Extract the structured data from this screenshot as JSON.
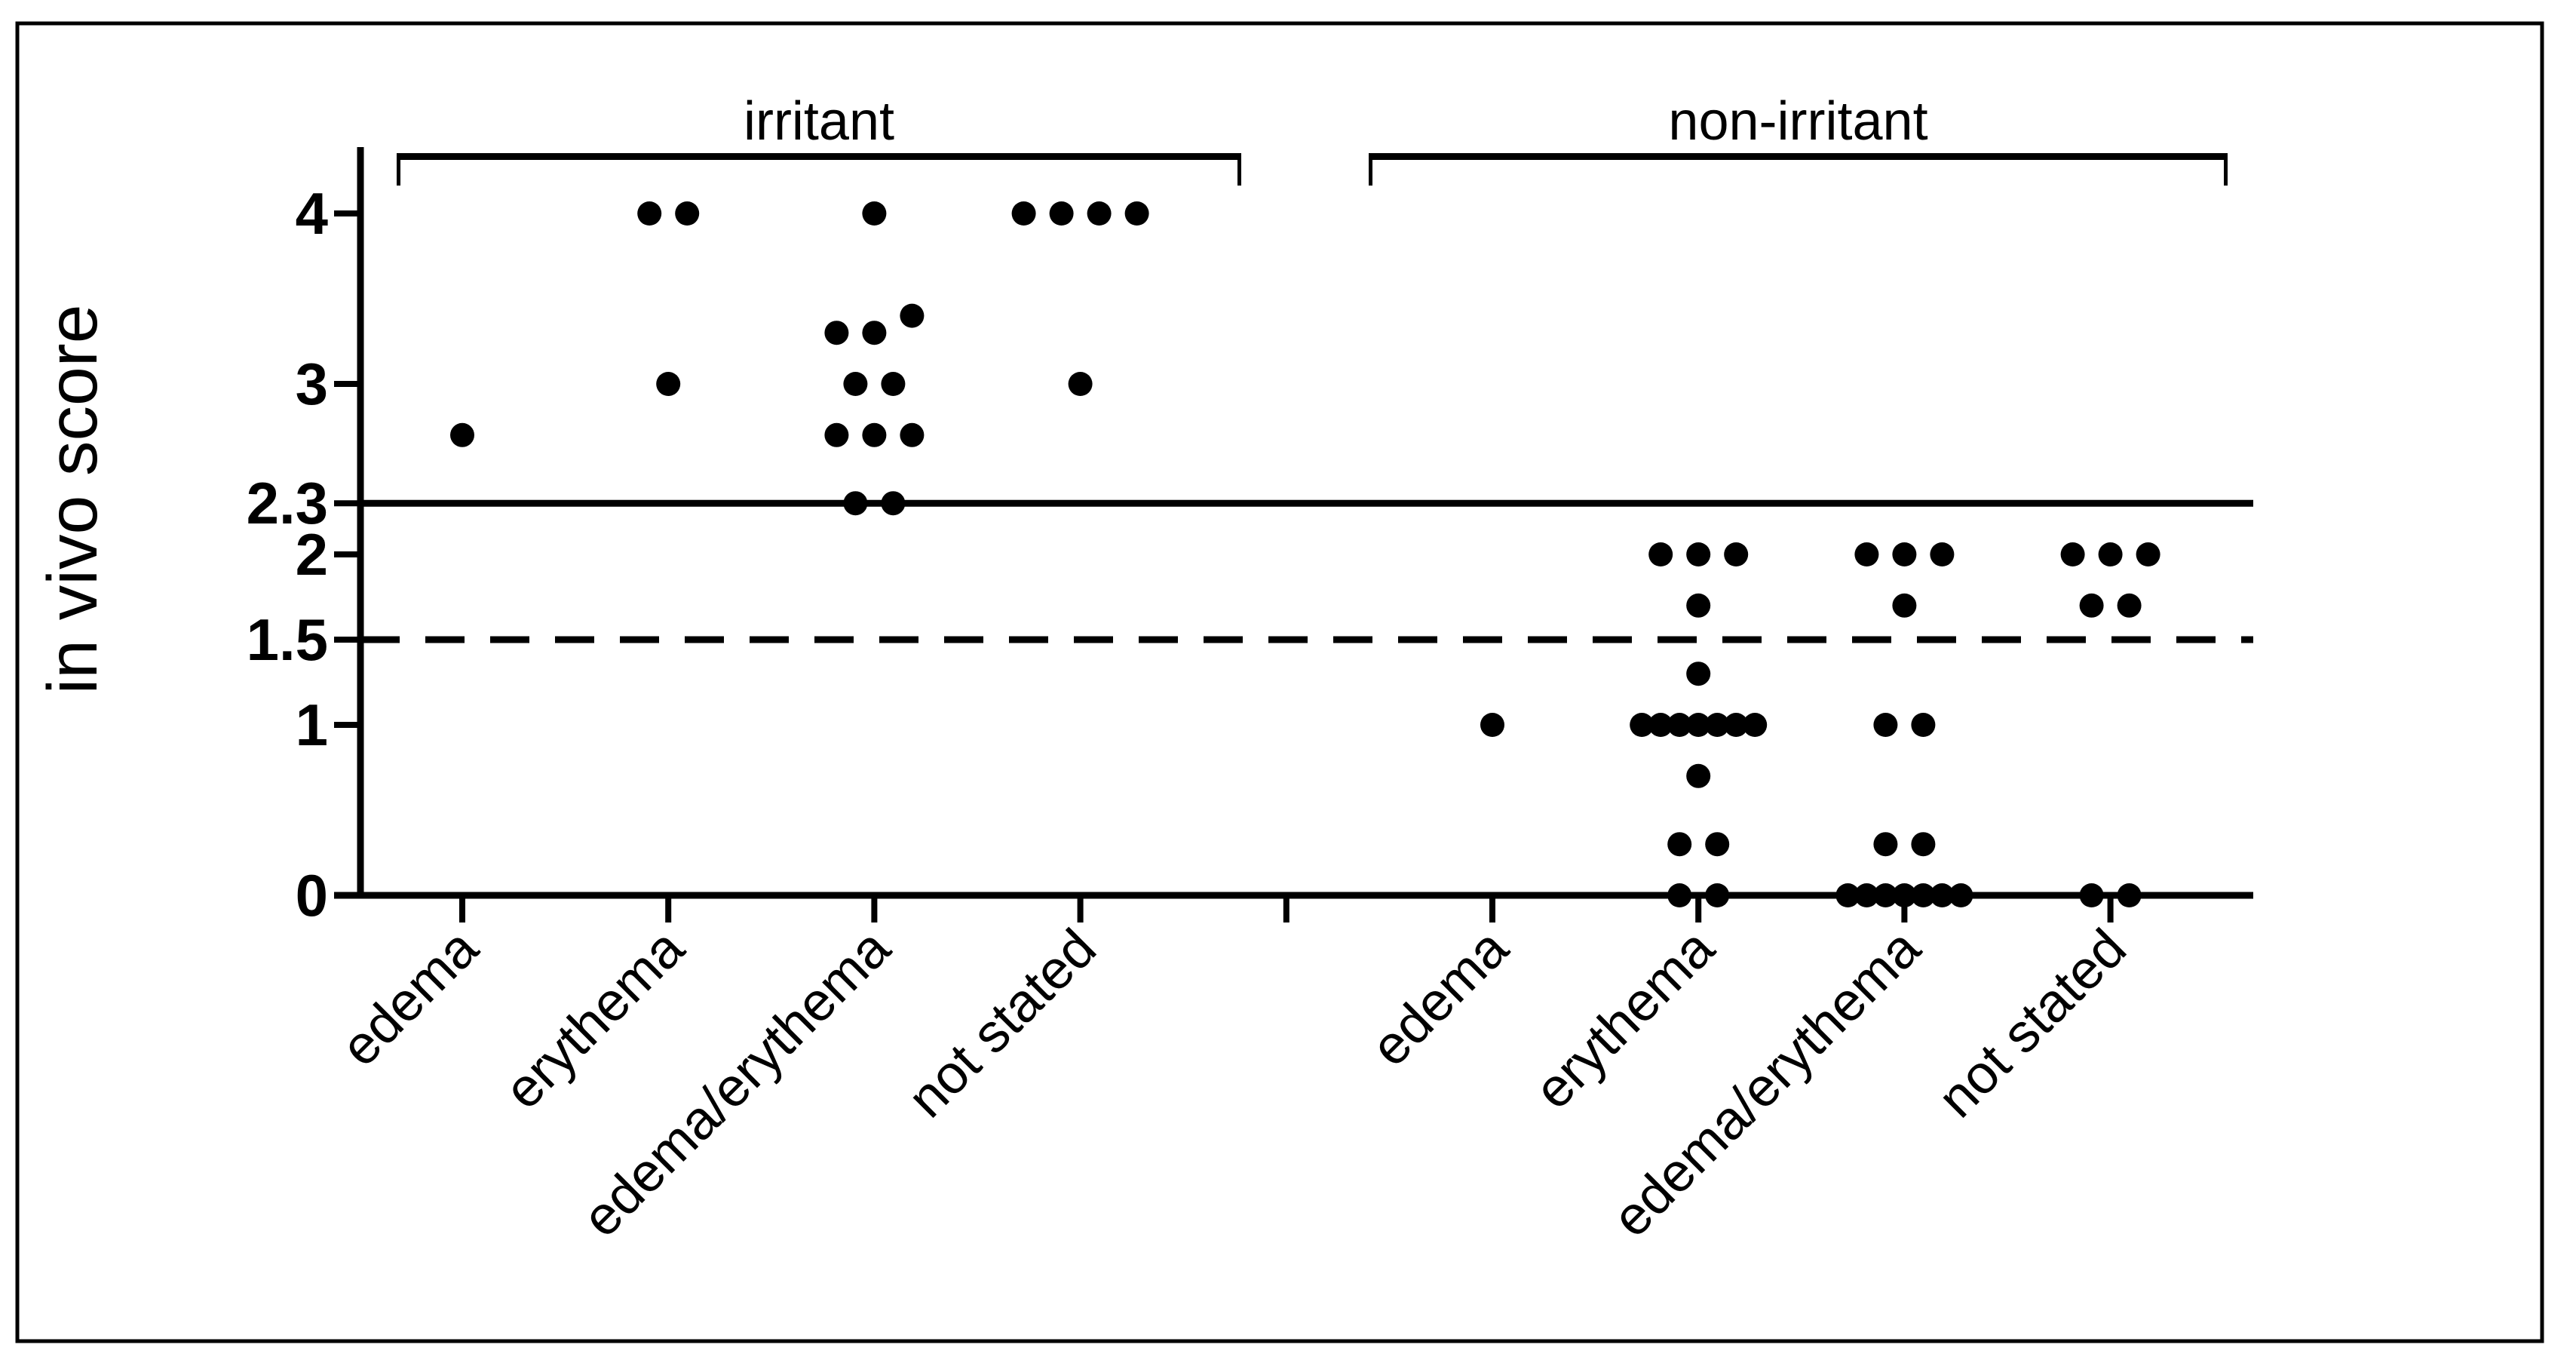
{
  "figure": {
    "ylabel": "in vivo score",
    "colors": {
      "ink": "#000000",
      "background": "#ffffff"
    }
  },
  "chart_data": {
    "type": "scatter",
    "subtype": "categorical-dot-plot",
    "title": "",
    "xlabel": "",
    "ylabel": "in vivo score",
    "ylim": [
      0,
      4.4
    ],
    "grid": false,
    "legend": "none",
    "yticks": [
      {
        "value": 4,
        "label": "4"
      },
      {
        "value": 3,
        "label": "3"
      },
      {
        "value": 2.3,
        "label": "2.3"
      },
      {
        "value": 2,
        "label": "2"
      },
      {
        "value": 1.5,
        "label": "1.5"
      },
      {
        "value": 1,
        "label": "1"
      },
      {
        "value": 0,
        "label": "0"
      }
    ],
    "reference_lines": [
      {
        "value": 2.3,
        "style": "solid"
      },
      {
        "value": 1.5,
        "style": "dashed"
      }
    ],
    "groups": [
      {
        "label": "irritant",
        "categories": [
          {
            "label": "edema",
            "values": [
              2.7
            ],
            "points": [
              {
                "v": 2.7,
                "dx": 0
              }
            ]
          },
          {
            "label": "erythema",
            "values": [
              4,
              4,
              3
            ],
            "points": [
              {
                "v": 4,
                "dx": -25
              },
              {
                "v": 4,
                "dx": 25
              },
              {
                "v": 3,
                "dx": 0
              }
            ]
          },
          {
            "label": "edema/erythema",
            "values": [
              4,
              3.4,
              3.3,
              3.3,
              3,
              3,
              2.7,
              2.7,
              2.7,
              2.3,
              2.3
            ],
            "points": [
              {
                "v": 4,
                "dx": 0
              },
              {
                "v": 3.4,
                "dx": 50
              },
              {
                "v": 3.3,
                "dx": -50
              },
              {
                "v": 3.3,
                "dx": 0
              },
              {
                "v": 3,
                "dx": -25
              },
              {
                "v": 3,
                "dx": 25
              },
              {
                "v": 2.7,
                "dx": -50
              },
              {
                "v": 2.7,
                "dx": 0
              },
              {
                "v": 2.7,
                "dx": 50
              },
              {
                "v": 2.3,
                "dx": -25
              },
              {
                "v": 2.3,
                "dx": 25
              }
            ]
          },
          {
            "label": "not stated",
            "values": [
              4,
              4,
              4,
              4,
              3
            ],
            "points": [
              {
                "v": 4,
                "dx": -75
              },
              {
                "v": 4,
                "dx": -25
              },
              {
                "v": 4,
                "dx": 25
              },
              {
                "v": 4,
                "dx": 75
              },
              {
                "v": 3,
                "dx": 0
              }
            ]
          }
        ]
      },
      {
        "label": "non-irritant",
        "categories": [
          {
            "label": "edema",
            "values": [
              1
            ],
            "points": [
              {
                "v": 1,
                "dx": 0
              }
            ]
          },
          {
            "label": "erythema",
            "values": [
              2,
              2,
              2,
              1.7,
              1.3,
              1,
              1,
              1,
              1,
              1,
              1,
              1,
              0.7,
              0.3,
              0.3,
              0,
              0
            ],
            "points": [
              {
                "v": 2,
                "dx": -50
              },
              {
                "v": 2,
                "dx": 0
              },
              {
                "v": 2,
                "dx": 50
              },
              {
                "v": 1.7,
                "dx": 0
              },
              {
                "v": 1.3,
                "dx": 0
              },
              {
                "v": 1,
                "dx": -75
              },
              {
                "v": 1,
                "dx": -50
              },
              {
                "v": 1,
                "dx": -25
              },
              {
                "v": 1,
                "dx": 0
              },
              {
                "v": 1,
                "dx": 25
              },
              {
                "v": 1,
                "dx": 50
              },
              {
                "v": 1,
                "dx": 75
              },
              {
                "v": 0.7,
                "dx": 0
              },
              {
                "v": 0.3,
                "dx": -25
              },
              {
                "v": 0.3,
                "dx": 25
              },
              {
                "v": 0,
                "dx": -25
              },
              {
                "v": 0,
                "dx": 25
              }
            ]
          },
          {
            "label": "edema/erythema",
            "values": [
              2,
              2,
              2,
              1.7,
              1,
              1,
              0.3,
              0.3,
              0,
              0,
              0,
              0,
              0,
              0,
              0
            ],
            "points": [
              {
                "v": 2,
                "dx": -50
              },
              {
                "v": 2,
                "dx": 0
              },
              {
                "v": 2,
                "dx": 50
              },
              {
                "v": 1.7,
                "dx": 0
              },
              {
                "v": 1,
                "dx": -25
              },
              {
                "v": 1,
                "dx": 25
              },
              {
                "v": 0.3,
                "dx": -25
              },
              {
                "v": 0.3,
                "dx": 25
              },
              {
                "v": 0,
                "dx": -75
              },
              {
                "v": 0,
                "dx": -50
              },
              {
                "v": 0,
                "dx": -25
              },
              {
                "v": 0,
                "dx": 0
              },
              {
                "v": 0,
                "dx": 25
              },
              {
                "v": 0,
                "dx": 50
              },
              {
                "v": 0,
                "dx": 75
              }
            ]
          },
          {
            "label": "not stated",
            "values": [
              2,
              2,
              2,
              1.7,
              1.7,
              0,
              0
            ],
            "points": [
              {
                "v": 2,
                "dx": -50
              },
              {
                "v": 2,
                "dx": 0
              },
              {
                "v": 2,
                "dx": 50
              },
              {
                "v": 1.7,
                "dx": -25
              },
              {
                "v": 1.7,
                "dx": 25
              },
              {
                "v": 0,
                "dx": -25
              },
              {
                "v": 0,
                "dx": 25
              }
            ]
          }
        ]
      }
    ]
  }
}
